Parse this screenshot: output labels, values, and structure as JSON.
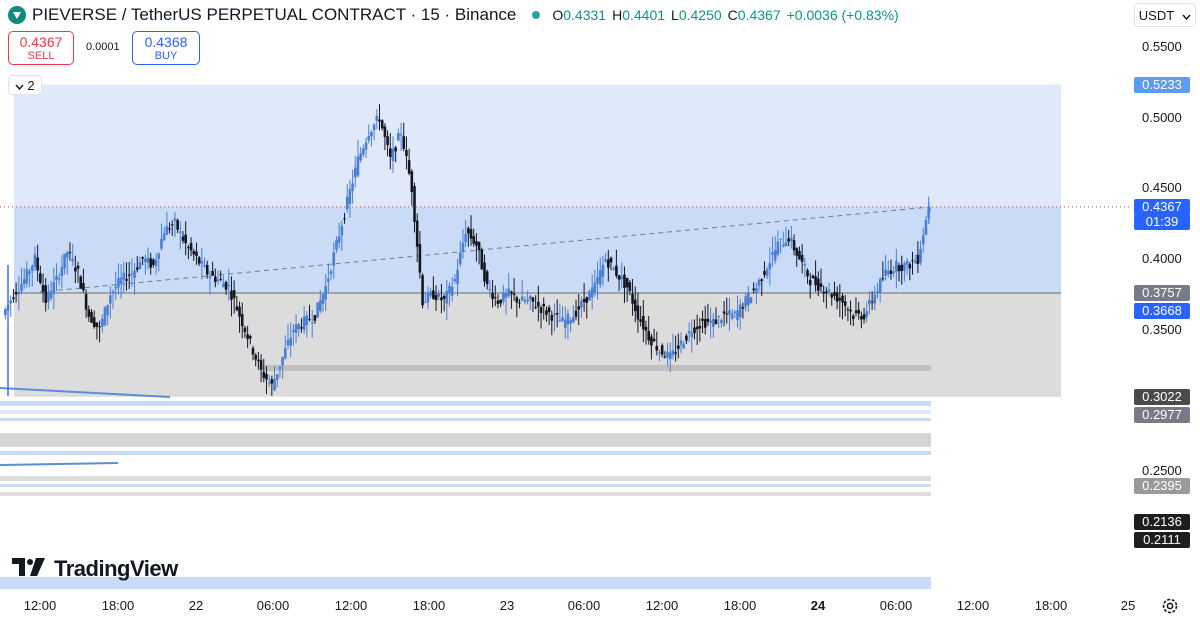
{
  "header": {
    "symbol_title": "PIEVERSE / TetherUS PERPETUAL CONTRACT · 15 · Binance",
    "ohlc": [
      {
        "key": "O",
        "value": "0.4331"
      },
      {
        "key": "H",
        "value": "0.4401"
      },
      {
        "key": "L",
        "value": "0.4250"
      },
      {
        "key": "C",
        "value": "0.4367"
      }
    ],
    "change": "+0.0036 (+0.83%)"
  },
  "trade": {
    "sell_price": "0.4367",
    "sell_label": "SELL",
    "spread": "0.0001",
    "buy_price": "0.4368",
    "buy_label": "BUY"
  },
  "indicators_toggle": {
    "count": "2"
  },
  "currency": "USDT",
  "price_axis": {
    "ticks": [
      "0.5500",
      "0.5000",
      "0.4500",
      "0.4000",
      "0.3500",
      "0.2500"
    ],
    "labels": [
      {
        "text": "0.5233",
        "color": "#5b9cf6"
      },
      {
        "text": "0.4367",
        "color": "#2962ff"
      },
      {
        "text": "0.3757",
        "color": "#787b86"
      },
      {
        "text": "0.3668",
        "color": "#2962ff"
      },
      {
        "text": "0.3022",
        "color": "#4a4a4a"
      },
      {
        "text": "0.2977",
        "color": "#787b86"
      },
      {
        "text": "0.2395",
        "color": "#9a9a9a"
      },
      {
        "text": "0.2136",
        "color": "#1e1e1e"
      },
      {
        "text": "0.2111",
        "color": "#1e1e1e"
      }
    ],
    "countdown": "01:39"
  },
  "time_axis": {
    "labels": [
      "12:00",
      "18:00",
      "22",
      "06:00",
      "12:00",
      "18:00",
      "23",
      "06:00",
      "12:00",
      "18:00",
      "24",
      "06:00",
      "12:00",
      "18:00",
      "25"
    ]
  },
  "brand": "TradingView",
  "chart_data": {
    "type": "candlestick",
    "title": "PIEVERSE / TetherUS PERPETUAL CONTRACT · 15 · Binance",
    "y_axis": {
      "ticks": [
        0.55,
        0.5,
        0.45,
        0.4,
        0.35,
        0.25
      ]
    },
    "x_axis": {
      "ticks": [
        "12:00",
        "18:00",
        "22",
        "06:00",
        "12:00",
        "18:00",
        "23",
        "06:00",
        "12:00",
        "18:00",
        "24",
        "06:00",
        "12:00",
        "18:00",
        "25"
      ]
    },
    "close_path": [
      0.36,
      0.375,
      0.385,
      0.4,
      0.37,
      0.385,
      0.405,
      0.39,
      0.36,
      0.35,
      0.375,
      0.385,
      0.39,
      0.4,
      0.395,
      0.42,
      0.425,
      0.41,
      0.4,
      0.39,
      0.385,
      0.38,
      0.36,
      0.34,
      0.32,
      0.31,
      0.33,
      0.35,
      0.355,
      0.36,
      0.38,
      0.41,
      0.44,
      0.47,
      0.49,
      0.5,
      0.47,
      0.49,
      0.45,
      0.37,
      0.375,
      0.37,
      0.385,
      0.42,
      0.41,
      0.38,
      0.37,
      0.375,
      0.37,
      0.37,
      0.365,
      0.36,
      0.355,
      0.36,
      0.37,
      0.38,
      0.4,
      0.39,
      0.38,
      0.36,
      0.345,
      0.335,
      0.33,
      0.34,
      0.35,
      0.355,
      0.355,
      0.36,
      0.36,
      0.37,
      0.38,
      0.395,
      0.41,
      0.415,
      0.4,
      0.385,
      0.38,
      0.375,
      0.37,
      0.36,
      0.36,
      0.375,
      0.39,
      0.395,
      0.395,
      0.4,
      0.4367
    ],
    "last_price": 0.4367,
    "ohlc_last": {
      "open": 0.4331,
      "high": 0.4401,
      "low": 0.425,
      "close": 0.4367
    },
    "levels": [
      0.5233,
      0.3757,
      0.3668,
      0.3022,
      0.2977,
      0.2395,
      0.2136,
      0.2111
    ],
    "zones": [
      {
        "from": 0.3022,
        "to": 0.3757,
        "color": "#dcdcdc"
      },
      {
        "from": 0.3757,
        "to": 0.4367,
        "color": "#c9dbf7"
      },
      {
        "from": 0.4367,
        "to": 0.5233,
        "color": "#dfe9fa"
      }
    ]
  }
}
